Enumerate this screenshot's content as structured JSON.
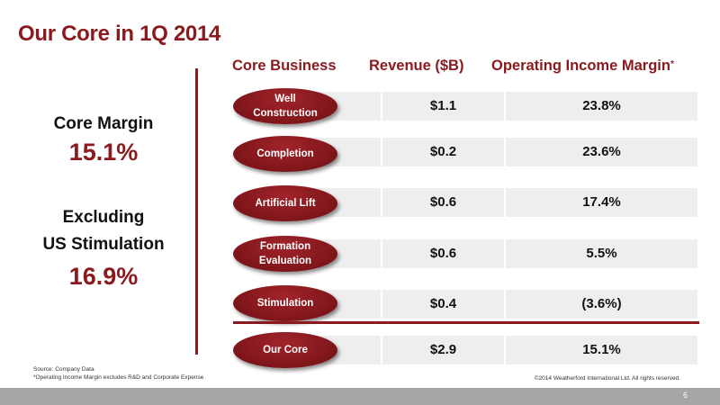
{
  "title": "Our Core in 1Q 2014",
  "left": {
    "core_margin_label": "Core Margin",
    "core_margin_value": "15.1%",
    "excluding_line1": "Excluding",
    "excluding_line2": "US Stimulation",
    "excluding_value": "16.9%"
  },
  "table": {
    "headers": {
      "business": "Core Business",
      "revenue": "Revenue ($B)",
      "margin": "Operating Income Margin",
      "margin_mark": "*"
    },
    "rows": [
      {
        "line1": "Well",
        "line2": "Construction",
        "revenue": "$1.1",
        "margin": "23.8%"
      },
      {
        "line1": "Completion",
        "line2": "",
        "revenue": "$0.2",
        "margin": "23.6%"
      },
      {
        "line1": "Artificial Lift",
        "line2": "",
        "revenue": "$0.6",
        "margin": "17.4%"
      },
      {
        "line1": "Formation",
        "line2": "Evaluation",
        "revenue": "$0.6",
        "margin": "5.5%"
      },
      {
        "line1": "Stimulation",
        "line2": "",
        "revenue": "$0.4",
        "margin": "(3.6%)"
      }
    ],
    "total": {
      "label": "Our Core",
      "revenue": "$2.9",
      "margin": "15.1%"
    }
  },
  "footer": {
    "source": "Source: Company Data",
    "note": "*Operating Income Margin excludes R&D and Corporate Expense",
    "copyright": "©2014 Weatherford International Ltd.  All rights reserved.",
    "page_number": "6"
  },
  "colors": {
    "accent": "#8b1a1f",
    "row_background": "#eeeeee",
    "footer_bar": "#a6a6a6"
  }
}
